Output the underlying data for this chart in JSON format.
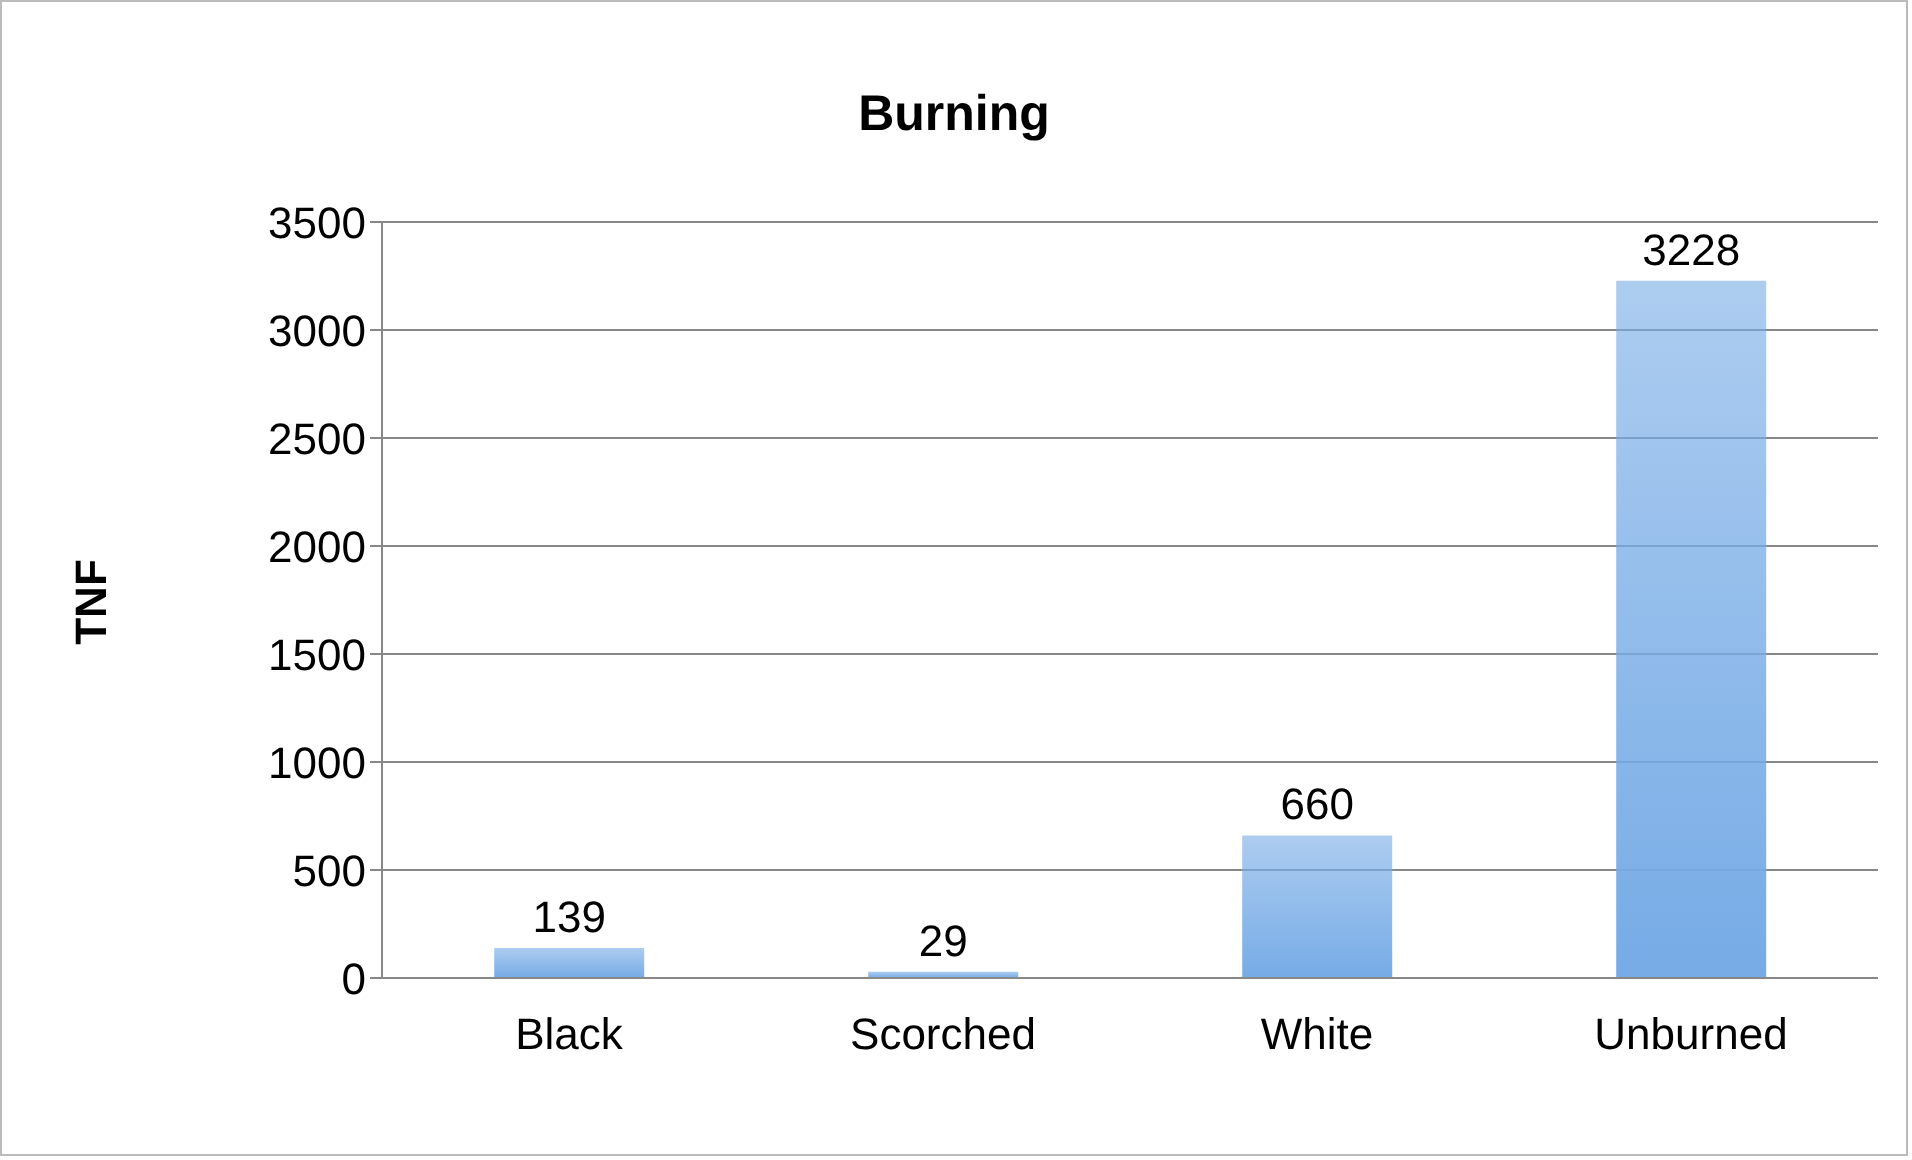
{
  "chart_data": {
    "type": "bar",
    "title": "Burning",
    "ylabel": "TNF",
    "categories": [
      "Black",
      "Scorched",
      "White",
      "Unburned"
    ],
    "values": [
      139,
      29,
      660,
      3228
    ],
    "color": "#76abe6",
    "ylim": [
      0,
      3500
    ],
    "yticks": [
      0,
      500,
      1000,
      1500,
      2000,
      2500,
      3000,
      3500
    ],
    "grid": "y",
    "data_labels": true
  }
}
